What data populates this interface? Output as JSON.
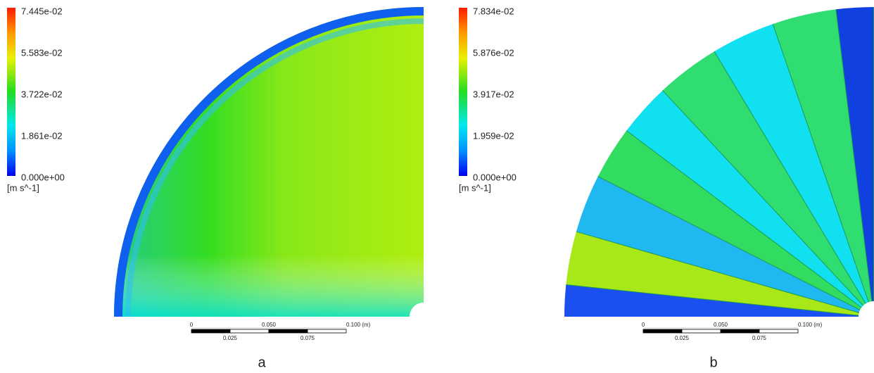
{
  "panels": [
    {
      "legend": {
        "ticks": [
          "7.445e-02",
          "5.583e-02",
          "3.722e-02",
          "1.861e-02",
          "0.000e+00"
        ],
        "unit": "[m s^-1]"
      },
      "scale_bar": {
        "top_labels": [
          "0",
          "0.050",
          "0.100  (m)"
        ],
        "bottom_labels": [
          "0.025",
          "0.075"
        ]
      },
      "caption": "a"
    },
    {
      "legend": {
        "ticks": [
          "7.834e-02",
          "5.876e-02",
          "3.917e-02",
          "1.959e-02",
          "0.000e+00"
        ],
        "unit": "[m s^-1]"
      },
      "scale_bar": {
        "top_labels": [
          "0",
          "0.050",
          "0.100  (m)"
        ],
        "bottom_labels": [
          "0.025",
          "0.075"
        ]
      },
      "caption": "b"
    }
  ]
}
